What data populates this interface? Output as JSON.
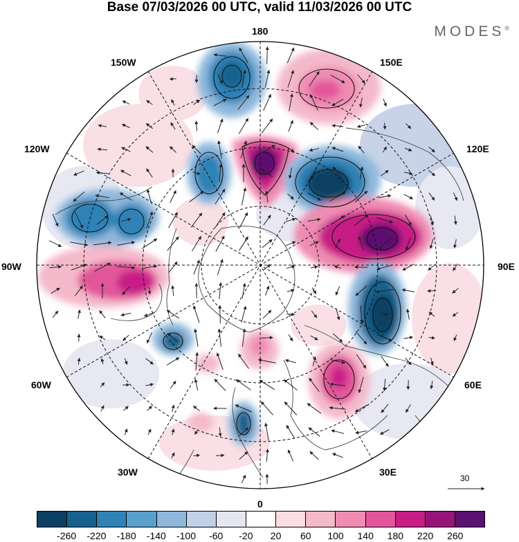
{
  "title": "Base 07/03/2026 00 UTC, valid 11/03/2026 00 UTC",
  "brand": "MODES",
  "brand_mark": "®",
  "longitude_labels": {
    "n180": "180",
    "w150": "150W",
    "e150": "150E",
    "w120": "120W",
    "e120": "120E",
    "w90": "90W",
    "e90": "90E",
    "w60": "60W",
    "e60": "60E",
    "w30": "30W",
    "e30": "30E",
    "s0": "0"
  },
  "reference_vector": {
    "label": "30"
  },
  "colorbar": {
    "colors": [
      "#0b3f63",
      "#16628e",
      "#2f82b6",
      "#5aa0cc",
      "#8fb8dc",
      "#c2cfe6",
      "#e6e6f2",
      "#ffffff",
      "#f9dde3",
      "#f4b9cb",
      "#ef8cb2",
      "#e2579a",
      "#c71d86",
      "#981378",
      "#5b1170"
    ],
    "labels": [
      "-260",
      "-220",
      "-180",
      "-140",
      "-100",
      "-60",
      "-20",
      "20",
      "60",
      "100",
      "140",
      "180",
      "220",
      "260"
    ]
  },
  "anomaly_centers": [
    {
      "name": "blue-150w",
      "value": -200
    },
    {
      "name": "pink-160e",
      "value": 140
    },
    {
      "name": "purple-180",
      "value": 240
    },
    {
      "name": "blue-165w",
      "value": -170
    },
    {
      "name": "darkblue-140e",
      "value": -240
    },
    {
      "name": "blue-120w",
      "value": -180
    },
    {
      "name": "purple-100e",
      "value": 260
    },
    {
      "name": "pink-90w",
      "value": 160
    },
    {
      "name": "darkblue-70e",
      "value": -250
    },
    {
      "name": "blue-50w",
      "value": -150
    },
    {
      "name": "pink-40e",
      "value": 160
    },
    {
      "name": "blue-10w",
      "value": -150
    }
  ]
}
